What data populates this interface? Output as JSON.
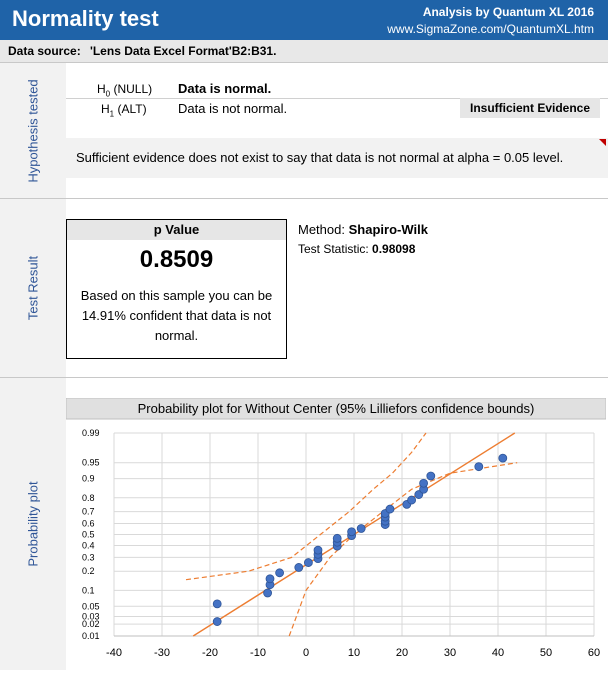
{
  "header": {
    "title": "Normality test",
    "right_line1": "Analysis by Quantum XL 2016",
    "right_line2": "www.SigmaZone.com/QuantumXL.htm"
  },
  "datasource": {
    "label": "Data source:",
    "value": "'Lens Data Excel Format'B2:B31."
  },
  "sections": {
    "hypothesis": "Hypothesis tested",
    "result": "Test Result",
    "plot": "Probability plot"
  },
  "hypothesis": {
    "h0_label": "H",
    "h0_sub": "0",
    "h0_tail": " (NULL)",
    "h0_text": "Data is normal.",
    "h1_label": "H",
    "h1_sub": "1",
    "h1_tail": " (ALT)",
    "h1_text": "Data is not normal.",
    "badge": "Insufficient Evidence",
    "conclusion": "Sufficient evidence does not exist to say that data is not normal at alpha = 0.05 level."
  },
  "result": {
    "p_header": "p Value",
    "p_value": "0.8509",
    "p_text": "Based on this sample you can be 14.91% confident that data is not normal.",
    "method_label": "Method:",
    "method_value": "Shapiro-Wilk",
    "stat_label": "Test Statistic:",
    "stat_value": "0.98098"
  },
  "colors": {
    "header_bg": "#1f63a8",
    "side_text": "#2f5597",
    "point": "#4472c4",
    "fit_line": "#ed7d31"
  },
  "chart_data": {
    "type": "scatter",
    "title": "Probability plot for Without Center (95% Lilliefors confidence bounds)",
    "x_ticks": [
      -40,
      -30,
      -20,
      -10,
      0,
      10,
      20,
      30,
      40,
      50,
      60
    ],
    "xlim": [
      -40,
      60
    ],
    "y_tick_labels": [
      "0.01",
      "0.02",
      "0.03",
      "0.05",
      "0.1",
      "0.2",
      "0.3",
      "0.4",
      "0.5",
      "0.6",
      "0.7",
      "0.8",
      "0.9",
      "0.95",
      "0.99"
    ],
    "y_tick_probs": [
      0.01,
      0.02,
      0.03,
      0.05,
      0.1,
      0.2,
      0.3,
      0.4,
      0.5,
      0.6,
      0.7,
      0.8,
      0.9,
      0.95,
      0.99
    ],
    "grid": true,
    "points": [
      {
        "x": -18.5,
        "p": 0.023
      },
      {
        "x": -18.5,
        "p": 0.056
      },
      {
        "x": -8.0,
        "p": 0.09
      },
      {
        "x": -7.5,
        "p": 0.125
      },
      {
        "x": -7.5,
        "p": 0.155
      },
      {
        "x": -5.5,
        "p": 0.19
      },
      {
        "x": -1.5,
        "p": 0.225
      },
      {
        "x": 0.5,
        "p": 0.26
      },
      {
        "x": 2.5,
        "p": 0.29
      },
      {
        "x": 2.5,
        "p": 0.325
      },
      {
        "x": 2.5,
        "p": 0.36
      },
      {
        "x": 6.5,
        "p": 0.395
      },
      {
        "x": 6.5,
        "p": 0.43
      },
      {
        "x": 6.5,
        "p": 0.465
      },
      {
        "x": 9.5,
        "p": 0.49
      },
      {
        "x": 9.5,
        "p": 0.525
      },
      {
        "x": 11.5,
        "p": 0.555
      },
      {
        "x": 16.5,
        "p": 0.59
      },
      {
        "x": 16.5,
        "p": 0.62
      },
      {
        "x": 16.5,
        "p": 0.655
      },
      {
        "x": 16.5,
        "p": 0.685
      },
      {
        "x": 17.5,
        "p": 0.72
      },
      {
        "x": 21.0,
        "p": 0.755
      },
      {
        "x": 22.0,
        "p": 0.785
      },
      {
        "x": 23.5,
        "p": 0.82
      },
      {
        "x": 24.5,
        "p": 0.85
      },
      {
        "x": 24.5,
        "p": 0.88
      },
      {
        "x": 26.0,
        "p": 0.91
      },
      {
        "x": 36.0,
        "p": 0.94
      },
      {
        "x": 41.0,
        "p": 0.96
      }
    ],
    "fit_line": [
      {
        "x": -23.5,
        "p": 0.01
      },
      {
        "x": 43.5,
        "p": 0.99
      }
    ],
    "lower_bound": [
      {
        "x": -3.5,
        "p": 0.01
      },
      {
        "x": -2.0,
        "p": 0.03
      },
      {
        "x": 0.0,
        "p": 0.1
      },
      {
        "x": 5.0,
        "p": 0.3
      },
      {
        "x": 10.0,
        "p": 0.5
      },
      {
        "x": 16.0,
        "p": 0.7
      },
      {
        "x": 22.0,
        "p": 0.85
      },
      {
        "x": 30.0,
        "p": 0.92
      },
      {
        "x": 44.0,
        "p": 0.95
      }
    ],
    "upper_bound": [
      {
        "x": -25.0,
        "p": 0.15
      },
      {
        "x": -12.0,
        "p": 0.2
      },
      {
        "x": -3.0,
        "p": 0.3
      },
      {
        "x": 3.0,
        "p": 0.5
      },
      {
        "x": 9.0,
        "p": 0.7
      },
      {
        "x": 14.0,
        "p": 0.85
      },
      {
        "x": 18.0,
        "p": 0.92
      },
      {
        "x": 22.0,
        "p": 0.97
      },
      {
        "x": 25.0,
        "p": 0.99
      }
    ]
  }
}
